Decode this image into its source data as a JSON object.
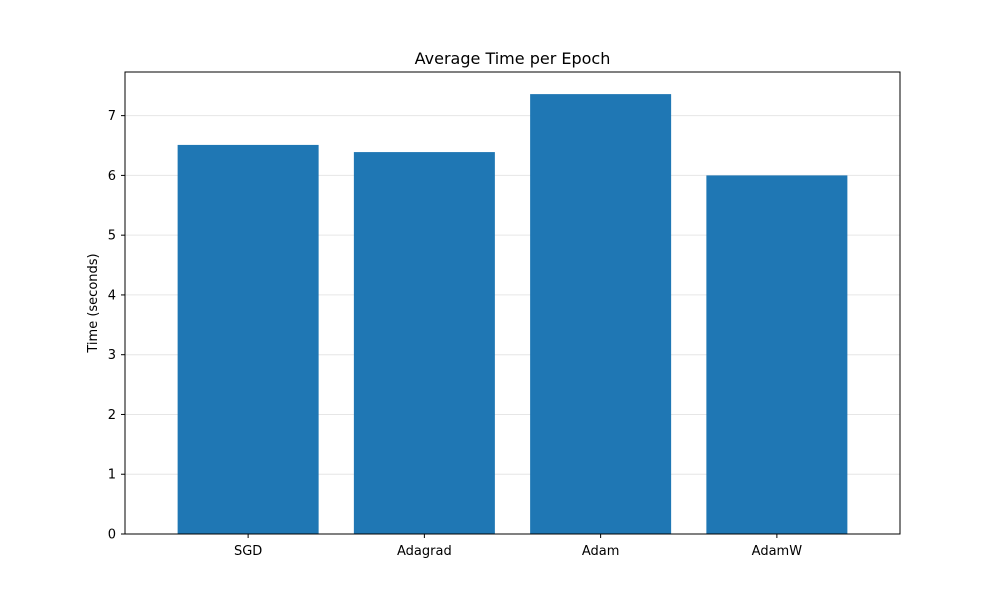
{
  "chart_data": {
    "type": "bar",
    "title": "Average Time per Epoch",
    "xlabel": "",
    "ylabel": "Time (seconds)",
    "categories": [
      "SGD",
      "Adagrad",
      "Adam",
      "AdamW"
    ],
    "values": [
      6.51,
      6.39,
      7.36,
      6.0
    ],
    "ylim": [
      0,
      7.73
    ],
    "yticks": [
      0,
      1,
      2,
      3,
      4,
      5,
      6,
      7
    ],
    "grid": "y",
    "bar_color": "#1f77b4",
    "grid_color": "#e6e6e6"
  }
}
